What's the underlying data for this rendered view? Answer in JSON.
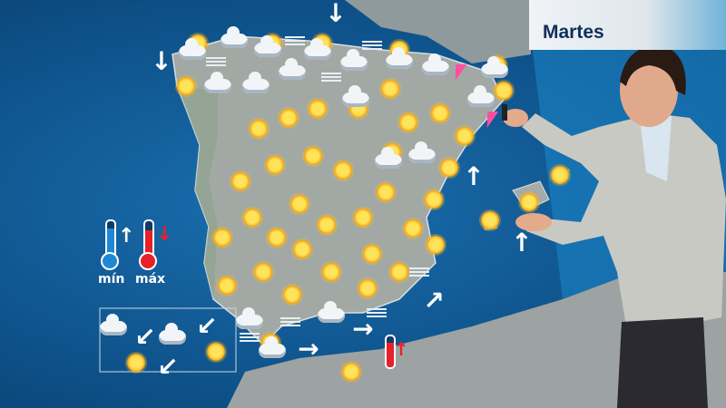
{
  "broadcast": {
    "day_label": "Martes"
  },
  "legend": {
    "min_label": "mín",
    "max_label": "máx",
    "min_color": "#1e88d6",
    "max_color": "#e8202a"
  },
  "map": {
    "region": "Iberian Peninsula, Balearic and Canary Islands",
    "sea_color": "#0d5a92",
    "land_color": "#9aa3a4",
    "weather_icons": [
      "sun-icon",
      "cloud-icon",
      "fog-icon",
      "storm-icon",
      "wind-arrow-icon",
      "thermometer-max-up-icon"
    ]
  }
}
